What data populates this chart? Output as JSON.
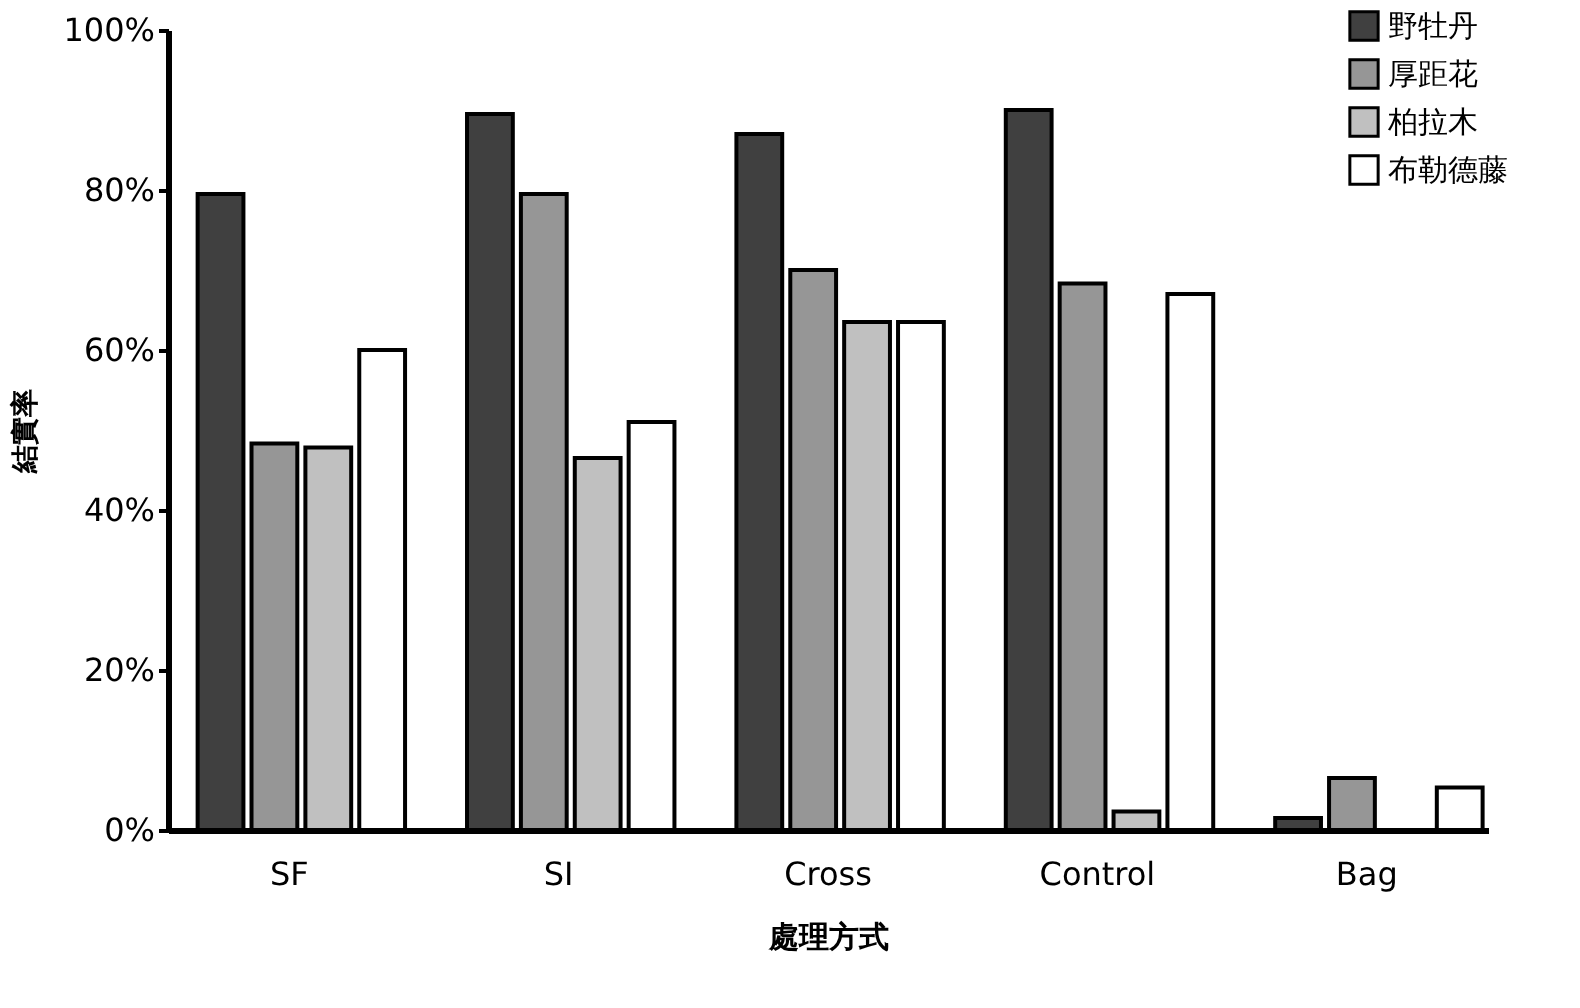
{
  "chart_data": {
    "type": "bar",
    "xlabel": "處理方式",
    "ylabel": "結實率",
    "categories": [
      "SF",
      "SI",
      "Cross",
      "Control",
      "Bag"
    ],
    "series": [
      {
        "name": "野牡丹",
        "color": "#404040",
        "values": [
          79.5,
          89.5,
          87,
          90,
          1.5
        ]
      },
      {
        "name": "厚距花",
        "color": "#969696",
        "values": [
          48.3,
          79.5,
          70,
          68.3,
          6.5
        ]
      },
      {
        "name": "柏拉木",
        "color": "#c0c0c0",
        "values": [
          47.8,
          46.5,
          63.5,
          2.3,
          null
        ]
      },
      {
        "name": "布勒德藤",
        "color": "#ffffff",
        "values": [
          60,
          51,
          63.5,
          67,
          5.3
        ]
      }
    ],
    "ylim": [
      0,
      100
    ],
    "yticks": [
      {
        "value": 0,
        "label": "0%"
      },
      {
        "value": 20,
        "label": "20%"
      },
      {
        "value": 40,
        "label": "40%"
      },
      {
        "value": 60,
        "label": "60%"
      },
      {
        "value": 80,
        "label": "80%"
      },
      {
        "value": 100,
        "label": "100%"
      }
    ],
    "grid": false,
    "legend": "top right"
  }
}
